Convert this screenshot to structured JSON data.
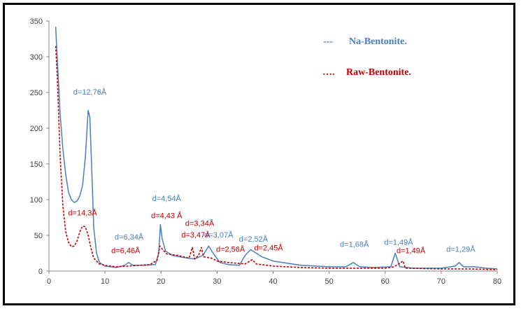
{
  "chart_data": {
    "type": "line",
    "title": "",
    "xlabel": "",
    "ylabel": "",
    "xlim": [
      0,
      80
    ],
    "ylim": [
      0,
      350
    ],
    "x_ticks": [
      0,
      10,
      20,
      30,
      40,
      50,
      60,
      70,
      80
    ],
    "y_ticks": [
      0,
      50,
      100,
      150,
      200,
      250,
      300,
      350
    ],
    "grid": "none",
    "legend": [
      {
        "marker": "---",
        "name": "Na-Bentonite.",
        "color": "#4a7ebb"
      },
      {
        "marker": "…. ",
        "name": "Raw-Bentonite.",
        "color": "#c00000"
      }
    ],
    "series": [
      {
        "name": "Na-Bentonite",
        "color": "#4a7ebb",
        "style": "solid",
        "points": [
          [
            1.2,
            342
          ],
          [
            1.6,
            280
          ],
          [
            2,
            220
          ],
          [
            2.5,
            170
          ],
          [
            3,
            135
          ],
          [
            3.5,
            110
          ],
          [
            4,
            100
          ],
          [
            4.5,
            96
          ],
          [
            5,
            98
          ],
          [
            5.5,
            105
          ],
          [
            6,
            120
          ],
          [
            6.5,
            160
          ],
          [
            7,
            225
          ],
          [
            7.3,
            215
          ],
          [
            7.6,
            150
          ],
          [
            8,
            60
          ],
          [
            8.5,
            25
          ],
          [
            9,
            12
          ],
          [
            10,
            7
          ],
          [
            12,
            5
          ],
          [
            13.5,
            8
          ],
          [
            14.2,
            12
          ],
          [
            15,
            8
          ],
          [
            17,
            8
          ],
          [
            19,
            9
          ],
          [
            19.6,
            25
          ],
          [
            19.9,
            65
          ],
          [
            20.2,
            45
          ],
          [
            20.8,
            28
          ],
          [
            22,
            22
          ],
          [
            24,
            19
          ],
          [
            26,
            17
          ],
          [
            27.5,
            22
          ],
          [
            28.5,
            35
          ],
          [
            29.3,
            25
          ],
          [
            30.5,
            12
          ],
          [
            32,
            9
          ],
          [
            34,
            8
          ],
          [
            35,
            22
          ],
          [
            36,
            30
          ],
          [
            38,
            20
          ],
          [
            40,
            14
          ],
          [
            45,
            8
          ],
          [
            50,
            6
          ],
          [
            53,
            6
          ],
          [
            54.3,
            12
          ],
          [
            55.5,
            6
          ],
          [
            58,
            5
          ],
          [
            61,
            6
          ],
          [
            61.8,
            25
          ],
          [
            62.6,
            6
          ],
          [
            65,
            4
          ],
          [
            70,
            4
          ],
          [
            72.5,
            7
          ],
          [
            73.2,
            12
          ],
          [
            74,
            6
          ],
          [
            76,
            6
          ],
          [
            78,
            4
          ],
          [
            80,
            3
          ]
        ]
      },
      {
        "name": "Raw-Bentonite",
        "color": "#c00000",
        "style": "dotted",
        "points": [
          [
            1.2,
            315
          ],
          [
            1.5,
            270
          ],
          [
            2,
            160
          ],
          [
            2.5,
            90
          ],
          [
            3,
            55
          ],
          [
            3.5,
            40
          ],
          [
            4,
            34
          ],
          [
            4.5,
            35
          ],
          [
            5,
            42
          ],
          [
            5.5,
            55
          ],
          [
            6,
            63
          ],
          [
            6.5,
            62
          ],
          [
            7,
            50
          ],
          [
            7.5,
            32
          ],
          [
            8,
            18
          ],
          [
            9,
            10
          ],
          [
            10,
            8
          ],
          [
            12,
            6
          ],
          [
            14,
            7
          ],
          [
            16,
            8
          ],
          [
            18,
            9
          ],
          [
            19.3,
            15
          ],
          [
            19.8,
            35
          ],
          [
            20.3,
            30
          ],
          [
            21,
            24
          ],
          [
            23,
            22
          ],
          [
            25,
            18
          ],
          [
            25.6,
            33
          ],
          [
            26,
            17
          ],
          [
            26.7,
            22
          ],
          [
            27.2,
            33
          ],
          [
            27.6,
            20
          ],
          [
            29,
            18
          ],
          [
            30,
            14
          ],
          [
            32,
            12
          ],
          [
            35,
            10
          ],
          [
            36.3,
            16
          ],
          [
            37,
            10
          ],
          [
            40,
            7
          ],
          [
            45,
            5
          ],
          [
            50,
            4
          ],
          [
            55,
            4
          ],
          [
            60,
            4
          ],
          [
            61.5,
            6
          ],
          [
            62,
            8
          ],
          [
            63.2,
            14
          ],
          [
            63.6,
            4
          ],
          [
            70,
            3
          ],
          [
            75,
            3
          ],
          [
            80,
            2
          ]
        ]
      }
    ],
    "annotations": [
      {
        "text": "d=12,76Å",
        "series": "Na-Bentonite",
        "x": 7.3,
        "y": 247
      },
      {
        "text": "d=14,3Å",
        "series": "Raw-Bentonite",
        "x": 6,
        "y": 78
      },
      {
        "text": "d=6,34Å",
        "series": "Na-Bentonite",
        "x": 14.3,
        "y": 44
      },
      {
        "text": "d=6,46Å",
        "series": "Raw-Bentonite",
        "x": 13.7,
        "y": 25
      },
      {
        "text": "d=4,54Å",
        "series": "Na-Bentonite",
        "x": 21,
        "y": 98
      },
      {
        "text": "d=4,43 Å",
        "series": "Raw-Bentonite",
        "x": 21,
        "y": 74
      },
      {
        "text": "d=3,34Å",
        "series": "Raw-Bentonite",
        "x": 26.9,
        "y": 63
      },
      {
        "text": "d=3,47Å",
        "series": "Raw-Bentonite",
        "x": 26.2,
        "y": 47
      },
      {
        "text": "d=3,07Å",
        "series": "Na-Bentonite",
        "x": 30.3,
        "y": 47
      },
      {
        "text": "d=2,56Å",
        "series": "Raw-Bentonite",
        "x": 32.4,
        "y": 27
      },
      {
        "text": "d=2,52Å",
        "series": "Na-Bentonite",
        "x": 36.5,
        "y": 41
      },
      {
        "text": "d=2,45Å",
        "series": "Raw-Bentonite",
        "x": 39.2,
        "y": 29
      },
      {
        "text": "d=1,68Å",
        "series": "Na-Bentonite",
        "x": 54.5,
        "y": 34
      },
      {
        "text": "d=1,49Å",
        "series": "Na-Bentonite",
        "x": 62.4,
        "y": 37
      },
      {
        "text": "d=1,49Å",
        "series": "Raw-Bentonite",
        "x": 64.6,
        "y": 25
      },
      {
        "text": "d=1,29Å",
        "series": "Na-Bentonite",
        "x": 73.5,
        "y": 27
      }
    ]
  }
}
